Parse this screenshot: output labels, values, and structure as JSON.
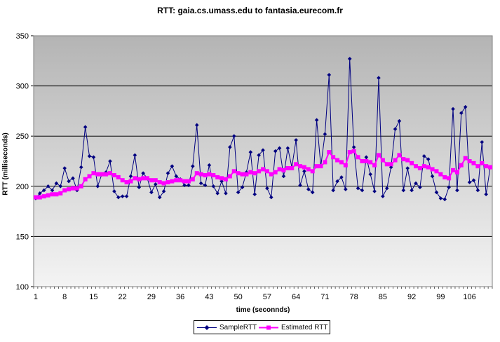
{
  "chart_data": {
    "type": "line",
    "title": "RTT: gaia.cs.umass.edu to fantasia.eurecom.fr",
    "xlabel": "time (seconnds)",
    "ylabel": "RTT (milliseconds)",
    "ylim": [
      100,
      350
    ],
    "yticks": [
      100,
      150,
      200,
      250,
      300,
      350
    ],
    "xlim": [
      1,
      111
    ],
    "xticks": [
      1,
      8,
      15,
      22,
      29,
      36,
      43,
      50,
      57,
      64,
      71,
      78,
      85,
      92,
      99,
      106
    ],
    "grid": true,
    "legend_position": "bottom",
    "x": [
      1,
      2,
      3,
      4,
      5,
      6,
      7,
      8,
      9,
      10,
      11,
      12,
      13,
      14,
      15,
      16,
      17,
      18,
      19,
      20,
      21,
      22,
      23,
      24,
      25,
      26,
      27,
      28,
      29,
      30,
      31,
      32,
      33,
      34,
      35,
      36,
      37,
      38,
      39,
      40,
      41,
      42,
      43,
      44,
      45,
      46,
      47,
      48,
      49,
      50,
      51,
      52,
      53,
      54,
      55,
      56,
      57,
      58,
      59,
      60,
      61,
      62,
      63,
      64,
      65,
      66,
      67,
      68,
      69,
      70,
      71,
      72,
      73,
      74,
      75,
      76,
      77,
      78,
      79,
      80,
      81,
      82,
      83,
      84,
      85,
      86,
      87,
      88,
      89,
      90,
      91,
      92,
      93,
      94,
      95,
      96,
      97,
      98,
      99,
      100,
      101,
      102,
      103,
      104,
      105,
      106,
      107,
      108,
      109,
      110,
      111
    ],
    "series": [
      {
        "name": "SampleRTT",
        "color": "#000080",
        "marker": "diamond",
        "values": [
          188,
          193,
          196,
          200,
          196,
          203,
          200,
          218,
          205,
          208,
          196,
          219,
          259,
          230,
          229,
          200,
          212,
          214,
          225,
          195,
          189,
          190,
          190,
          210,
          231,
          199,
          213,
          208,
          194,
          202,
          189,
          195,
          213,
          220,
          210,
          207,
          201,
          201,
          220,
          261,
          203,
          201,
          221,
          200,
          193,
          205,
          193,
          239,
          250,
          194,
          199,
          214,
          234,
          192,
          231,
          236,
          198,
          189,
          235,
          238,
          210,
          238,
          219,
          246,
          201,
          215,
          197,
          194,
          266,
          220,
          252,
          311,
          196,
          205,
          209,
          197,
          327,
          239,
          198,
          196,
          229,
          212,
          195,
          308,
          190,
          198,
          219,
          257,
          265,
          196,
          218,
          196,
          203,
          199,
          230,
          227,
          210,
          194,
          188,
          187,
          199,
          277,
          196,
          273,
          279,
          204,
          206,
          196,
          244,
          192,
          219
        ],
        "labels": {
          "name": "legend.items.0.label"
        }
      },
      {
        "name": "Estimated RTT",
        "color": "#ff00ff",
        "marker": "square",
        "values": [
          189,
          189,
          190,
          191,
          192,
          192,
          193,
          196,
          197,
          198,
          198,
          200,
          207,
          210,
          213,
          212,
          212,
          212,
          213,
          211,
          209,
          206,
          204,
          205,
          208,
          207,
          208,
          208,
          206,
          206,
          204,
          203,
          204,
          205,
          206,
          206,
          205,
          205,
          207,
          213,
          212,
          211,
          212,
          211,
          209,
          208,
          207,
          210,
          215,
          213,
          212,
          212,
          214,
          213,
          215,
          217,
          215,
          212,
          214,
          217,
          216,
          218,
          218,
          222,
          220,
          219,
          217,
          215,
          220,
          220,
          224,
          234,
          229,
          226,
          224,
          221,
          234,
          235,
          229,
          225,
          225,
          224,
          221,
          231,
          226,
          222,
          222,
          226,
          231,
          227,
          226,
          223,
          220,
          218,
          220,
          219,
          217,
          215,
          212,
          209,
          208,
          216,
          214,
          221,
          228,
          225,
          223,
          220,
          223,
          220,
          219
        ]
      }
    ]
  },
  "legend": {
    "items": [
      {
        "label": "SampleRTT"
      },
      {
        "label": "Estimated RTT"
      }
    ]
  },
  "colors": {
    "plot_bg_top": "#b4b4b4",
    "plot_bg_bottom": "#f4f4f4",
    "gridline": "#000000",
    "axis": "#000000"
  }
}
